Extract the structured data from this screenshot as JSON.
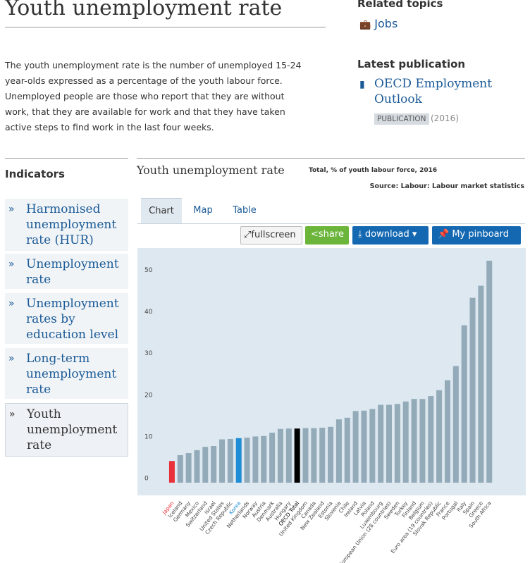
{
  "header": {
    "title": "Youth unemployment rate"
  },
  "related_topics": {
    "heading": "Related topics",
    "items": [
      "Jobs"
    ]
  },
  "description": "The youth unemployment rate is the number of unemployed 15-24 year-olds expressed as a percentage of the youth labour force. Unemployed people are those who report that they are without work, that they are available for work and that they have taken active steps to find work in the last four weeks.",
  "latest_publication": {
    "heading": "Latest publication",
    "title": "OECD Employment Outlook",
    "tag": "PUBLICATION",
    "year": "(2016)"
  },
  "indicators": {
    "heading": "Indicators",
    "items": [
      "Harmonised unemployment rate (HUR)",
      "Unemployment rate",
      "Unemployment rates by education level",
      "Long-term unemployment rate",
      "Youth unemployment rate"
    ],
    "selected": 4
  },
  "chart_panel": {
    "tabs": [
      "Chart",
      "Map",
      "Table"
    ],
    "selected_tab": 0,
    "buttons": [
      "fullscreen",
      "share",
      "download",
      "My pinboard"
    ]
  },
  "chart_data": {
    "type": "bar",
    "title": "Youth unemployment rate",
    "subtitle": "Total, % of youth labour force, 2016",
    "source": "Source: Labour: Labour market statistics",
    "categories": [
      "Japan",
      "Iceland",
      "Germany",
      "Mexico",
      "Switzerland",
      "Israel",
      "United States",
      "Czech Republic",
      "Korea",
      "Netherlands",
      "Norway",
      "Austria",
      "Denmark",
      "Australia",
      "Hungary",
      "OECD Total",
      "United Kingdom",
      "Canada",
      "New Zealand",
      "Estonia",
      "Slovenia",
      "Chile",
      "Ireland",
      "Latvia",
      "Poland",
      "Luxembourg",
      "European Union (28 countries)",
      "Sweden",
      "Turkey",
      "Finland",
      "Belgium",
      "Euro area (19 countries)",
      "Slovak Republic",
      "France",
      "Portugal",
      "Italy",
      "Spain",
      "Greece",
      "South Africa"
    ],
    "values": [
      5.2,
      6.6,
      7.1,
      7.8,
      8.6,
      8.8,
      10.4,
      10.5,
      10.7,
      10.8,
      11.1,
      11.2,
      12.0,
      12.9,
      13.0,
      13.0,
      13.1,
      13.1,
      13.2,
      13.4,
      15.2,
      15.6,
      17.2,
      17.3,
      17.7,
      18.7,
      18.7,
      18.9,
      19.5,
      20.1,
      20.1,
      20.8,
      22.2,
      24.6,
      28.0,
      37.8,
      44.4,
      47.3,
      53.3
    ],
    "colors": [
      "#e8313a",
      "#93aab8",
      "#93aab8",
      "#93aab8",
      "#93aab8",
      "#93aab8",
      "#93aab8",
      "#93aab8",
      "#1f8dd6",
      "#93aab8",
      "#93aab8",
      "#93aab8",
      "#93aab8",
      "#93aab8",
      "#93aab8",
      "#000000",
      "#93aab8",
      "#93aab8",
      "#93aab8",
      "#93aab8",
      "#93aab8",
      "#93aab8",
      "#93aab8",
      "#93aab8",
      "#93aab8",
      "#93aab8",
      "#93aab8",
      "#93aab8",
      "#93aab8",
      "#93aab8",
      "#93aab8",
      "#93aab8",
      "#93aab8",
      "#93aab8",
      "#93aab8",
      "#93aab8",
      "#93aab8",
      "#93aab8",
      "#93aab8"
    ],
    "ylim": [
      0,
      55
    ],
    "yticks": [
      0,
      10,
      20,
      30,
      40,
      50
    ],
    "grid": false
  }
}
